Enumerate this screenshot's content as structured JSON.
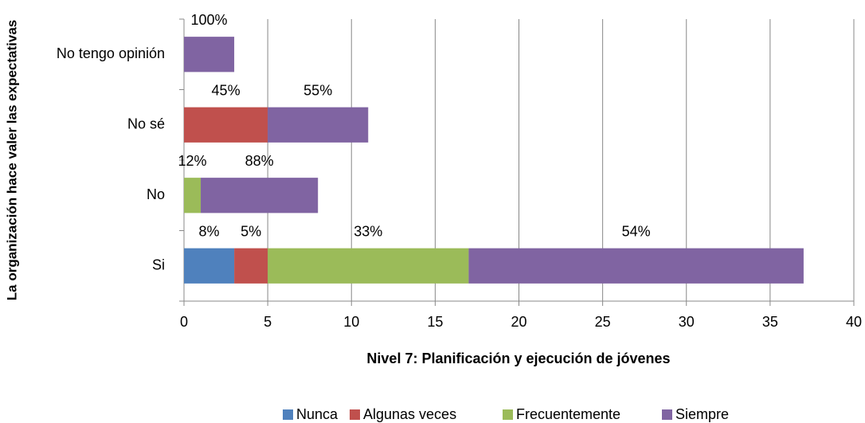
{
  "chart_data": {
    "type": "bar",
    "orientation": "horizontal",
    "stacked": true,
    "x_label": "Nivel 7: Planificación y ejecución de jóvenes",
    "y_label": "La organización hace valer las expectativas",
    "categories": [
      "Si",
      "No",
      "No sé",
      "No tengo opinión"
    ],
    "series": [
      {
        "name": "Nunca",
        "color": "#4f81bd",
        "values": [
          3,
          0,
          0,
          0
        ],
        "value_labels": [
          "8%",
          null,
          null,
          null
        ]
      },
      {
        "name": "Algunas veces",
        "color": "#c0504d",
        "values": [
          2,
          0,
          5,
          0
        ],
        "value_labels": [
          "5%",
          null,
          "45%",
          null
        ]
      },
      {
        "name": "Frecuentemente",
        "color": "#9bbb59",
        "values": [
          12,
          1,
          0,
          0
        ],
        "value_labels": [
          "33%",
          "12%",
          null,
          null
        ]
      },
      {
        "name": "Siempre",
        "color": "#8064a2",
        "values": [
          20,
          7,
          6,
          3
        ],
        "value_labels": [
          "54%",
          "88%",
          "55%",
          "100%"
        ]
      }
    ],
    "xlim": [
      0,
      40
    ],
    "xticks": [
      0,
      5,
      10,
      15,
      20,
      25,
      30,
      35,
      40
    ],
    "grid": true,
    "legend": "bottom"
  }
}
